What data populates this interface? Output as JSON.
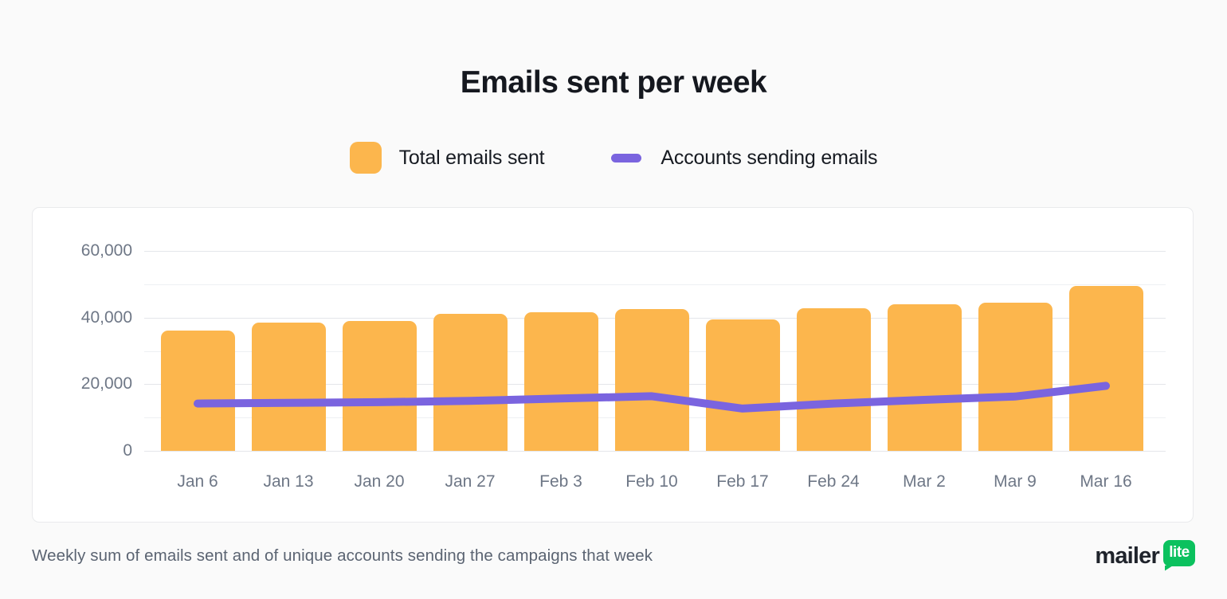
{
  "title": "Emails sent per week",
  "legend": [
    {
      "label": "Total emails sent",
      "marker": "bar-swatch",
      "color": "#FCB64D"
    },
    {
      "label": "Accounts sending emails",
      "marker": "line-swatch",
      "color": "#7A64DF"
    }
  ],
  "footer": "Weekly sum of emails sent and of unique accounts sending the campaigns that week",
  "logo": {
    "text": "mailer",
    "badge": "lite",
    "badge_color": "#0BC15E"
  },
  "colors": {
    "bar": "#FCB64D",
    "line": "#7A64DF",
    "grid_major": "#e4e6ea",
    "grid_minor": "#eef0f3"
  },
  "chart_data": {
    "type": "bar",
    "note": "bar series with overlaid line series",
    "categories": [
      "Jan 6",
      "Jan 13",
      "Jan 20",
      "Jan 27",
      "Feb 3",
      "Feb 10",
      "Feb 17",
      "Feb 24",
      "Mar 2",
      "Mar 9",
      "Mar 16"
    ],
    "series": [
      {
        "name": "Total emails sent",
        "type": "bar",
        "color": "#FCB64D",
        "values": [
          36200,
          38400,
          39000,
          41100,
          41700,
          42500,
          39400,
          42900,
          43900,
          44500,
          49400
        ]
      },
      {
        "name": "Accounts sending emails",
        "type": "line",
        "color": "#7A64DF",
        "values": [
          14200,
          14400,
          14600,
          15000,
          15700,
          16400,
          12700,
          14200,
          15300,
          16300,
          19500
        ]
      }
    ],
    "title": "Emails sent per week",
    "xlabel": "",
    "ylabel": "",
    "ylim": [
      0,
      60000
    ],
    "yticks": [
      0,
      20000,
      40000,
      60000
    ],
    "ytick_labels": [
      "0",
      "20,000",
      "40,000",
      "60,000"
    ],
    "grid": true,
    "gridline_step": 10000,
    "legend_position": "top"
  }
}
